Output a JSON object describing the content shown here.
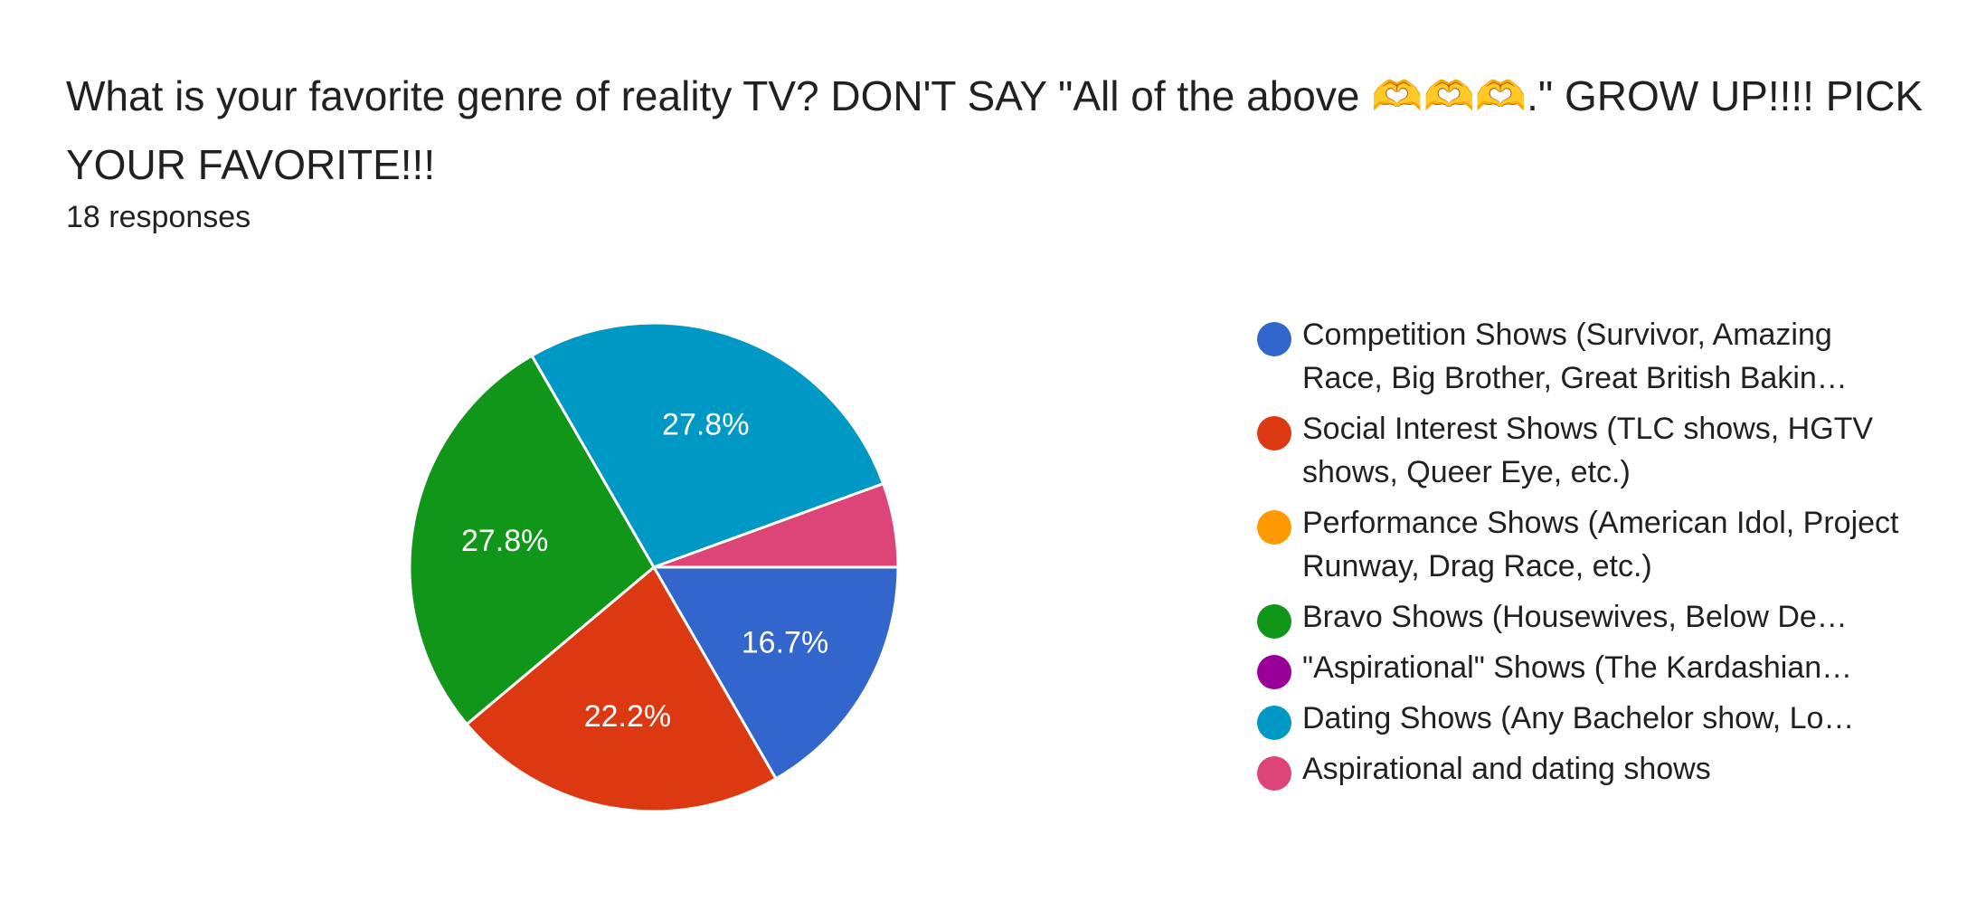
{
  "title": "What is your favorite genre of reality TV?  DON'T SAY \"All of the above 🫶🫶🫶.\" GROW UP!!!! PICK YOUR FAVORITE!!!",
  "responses_label": "18 responses",
  "chart_data": {
    "type": "pie",
    "title": "What is your favorite genre of reality TV?  DON'T SAY \"All of the above 🫶🫶🫶.\" GROW UP!!!! PICK YOUR FAVORITE!!!",
    "total_responses": 18,
    "start_angle_deg": 0,
    "direction": "clockwise",
    "legend_position": "right",
    "slices": [
      {
        "label": "Competition Shows (Survivor, Amazing Race, Big Brother, Great British Baking Show, etc.)",
        "value": 3,
        "percent_label": "16.7%",
        "color": "#3366cc"
      },
      {
        "label": "Social Interest Shows (TLC shows, HGTV shows, Queer Eye, etc.)",
        "value": 4,
        "percent_label": "22.2%",
        "color": "#dc3912"
      },
      {
        "label": "Performance Shows (American Idol, Project Runway, Drag Race, etc.)",
        "value": 0,
        "percent_label": "",
        "color": "#ff9900"
      },
      {
        "label": "Bravo Shows (Housewives, Below Deck, etc.)",
        "value": 5,
        "percent_label": "27.8%",
        "color": "#109618"
      },
      {
        "label": "\"Aspirational\" Shows (The Kardashians, etc.)",
        "value": 0,
        "percent_label": "",
        "color": "#990099"
      },
      {
        "label": "Dating Shows (Any Bachelor show, Love Island, etc.)",
        "value": 5,
        "percent_label": "27.8%",
        "color": "#0099c6"
      },
      {
        "label": "Aspirational and dating shows",
        "value": 1,
        "percent_label": "",
        "color": "#dd4477"
      }
    ]
  },
  "legend": [
    {
      "label": "Competition Shows (Survivor, Amazing Race, Big Brother, Great British Bakin…",
      "color": "#3366cc"
    },
    {
      "label": "Social Interest Shows (TLC shows, HGTV shows, Queer Eye, etc.)",
      "color": "#dc3912"
    },
    {
      "label": "Performance Shows (American Idol, Project Runway, Drag Race, etc.)",
      "color": "#ff9900"
    },
    {
      "label": "Bravo Shows (Housewives, Below De…",
      "color": "#109618"
    },
    {
      "label": "\"Aspirational\" Shows (The Kardashian…",
      "color": "#990099"
    },
    {
      "label": "Dating Shows (Any Bachelor show, Lo…",
      "color": "#0099c6"
    },
    {
      "label": "Aspirational and dating shows",
      "color": "#dd4477"
    }
  ]
}
